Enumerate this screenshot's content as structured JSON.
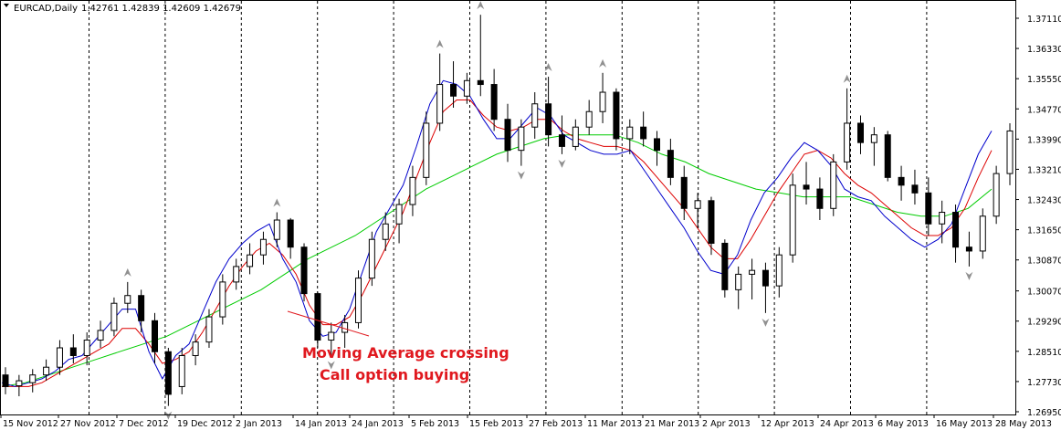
{
  "header": {
    "symbol": "EURCAD,Daily",
    "ohlc": "1.42761 1.42839 1.42609 1.42679"
  },
  "chart_data": {
    "type": "candlestick",
    "yticks": [
      "1.37110",
      "1.36330",
      "1.35550",
      "1.34770",
      "1.33990",
      "1.33210",
      "1.32430",
      "1.31650",
      "1.30870",
      "1.30070",
      "1.29290",
      "1.28510",
      "1.27730",
      "1.26950"
    ],
    "ytick_values": [
      1.3711,
      1.3633,
      1.3555,
      1.3477,
      1.3399,
      1.3321,
      1.3243,
      1.3165,
      1.3087,
      1.3007,
      1.2929,
      1.2851,
      1.2773,
      1.2695
    ],
    "xticks": [
      "15 Nov 2012",
      "27 Nov 2012",
      "7 Dec 2012",
      "19 Dec 2012",
      "2 Jan 2013",
      "14 Jan 2013",
      "24 Jan 2013",
      "5 Feb 2013",
      "15 Feb 2013",
      "27 Feb 2013",
      "11 Mar 2013",
      "21 Mar 2013",
      "2 Apr 2013",
      "12 Apr 2013",
      "24 Apr 2013",
      "6 May 2013",
      "16 May 2013",
      "28 May 2013"
    ],
    "ylim": [
      1.2687,
      1.3733
    ],
    "colors": {
      "up": "#ffffff",
      "down": "#000000",
      "ma_fast": "#0000cc",
      "ma_mid": "#dd0000",
      "ma_slow": "#00cc00",
      "annotation": "#e0191f",
      "fractal": "#909090"
    },
    "grid": "vertical dashed",
    "ma_fast": [
      1.277,
      1.276,
      1.277,
      1.278,
      1.28,
      1.283,
      1.284,
      1.288,
      1.292,
      1.296,
      1.296,
      1.285,
      1.278,
      1.284,
      1.287,
      1.295,
      1.303,
      1.309,
      1.313,
      1.316,
      1.318,
      1.309,
      1.303,
      1.293,
      1.289,
      1.29,
      1.296,
      1.306,
      1.316,
      1.322,
      1.328,
      1.338,
      1.349,
      1.355,
      1.354,
      1.351,
      1.345,
      1.34,
      1.34,
      1.344,
      1.348,
      1.346,
      1.341,
      1.339,
      1.337,
      1.336,
      1.336,
      1.337,
      1.332,
      1.327,
      1.322,
      1.317,
      1.311,
      1.306,
      1.305,
      1.31,
      1.319,
      1.326,
      1.33,
      1.335,
      1.339,
      1.337,
      1.333,
      1.327,
      1.325,
      1.324,
      1.32,
      1.317,
      1.314,
      1.312,
      1.314,
      1.318,
      1.327,
      1.336,
      1.342
    ],
    "ma_mid": [
      1.276,
      1.276,
      1.276,
      1.277,
      1.279,
      1.281,
      1.283,
      1.285,
      1.287,
      1.291,
      1.291,
      1.287,
      1.282,
      1.283,
      1.285,
      1.29,
      1.296,
      1.302,
      1.307,
      1.311,
      1.313,
      1.31,
      1.305,
      1.297,
      1.292,
      1.292,
      1.294,
      1.3,
      1.307,
      1.314,
      1.321,
      1.33,
      1.339,
      1.347,
      1.35,
      1.35,
      1.346,
      1.343,
      1.342,
      1.343,
      1.345,
      1.345,
      1.342,
      1.34,
      1.339,
      1.338,
      1.338,
      1.337,
      1.334,
      1.33,
      1.326,
      1.322,
      1.317,
      1.312,
      1.309,
      1.309,
      1.314,
      1.32,
      1.326,
      1.331,
      1.336,
      1.337,
      1.335,
      1.331,
      1.328,
      1.326,
      1.323,
      1.32,
      1.317,
      1.315,
      1.315,
      1.317,
      1.322,
      1.33,
      1.337
    ],
    "ma_slow": [
      1.276,
      1.277,
      1.279,
      1.281,
      1.283,
      1.285,
      1.287,
      1.289,
      1.292,
      1.295,
      1.298,
      1.301,
      1.305,
      1.309,
      1.312,
      1.315,
      1.319,
      1.323,
      1.327,
      1.33,
      1.333,
      1.336,
      1.338,
      1.34,
      1.341,
      1.341,
      1.341,
      1.339,
      1.336,
      1.334,
      1.331,
      1.329,
      1.327,
      1.326,
      1.325,
      1.325,
      1.325,
      1.323,
      1.321,
      1.32,
      1.32,
      1.322,
      1.327
    ],
    "candles": [
      {
        "o": 1.279,
        "h": 1.281,
        "l": 1.274,
        "c": 1.276
      },
      {
        "o": 1.2762,
        "h": 1.279,
        "l": 1.2735,
        "c": 1.2775
      },
      {
        "o": 1.277,
        "h": 1.2805,
        "l": 1.2745,
        "c": 1.279
      },
      {
        "o": 1.279,
        "h": 1.283,
        "l": 1.2775,
        "c": 1.281
      },
      {
        "o": 1.281,
        "h": 1.288,
        "l": 1.279,
        "c": 1.286
      },
      {
        "o": 1.286,
        "h": 1.2895,
        "l": 1.282,
        "c": 1.284
      },
      {
        "o": 1.284,
        "h": 1.29,
        "l": 1.2815,
        "c": 1.288
      },
      {
        "o": 1.288,
        "h": 1.293,
        "l": 1.286,
        "c": 1.2905
      },
      {
        "o": 1.2905,
        "h": 1.299,
        "l": 1.289,
        "c": 1.2975
      },
      {
        "o": 1.2975,
        "h": 1.303,
        "l": 1.295,
        "c": 1.2995
      },
      {
        "o": 1.2995,
        "h": 1.301,
        "l": 1.29,
        "c": 1.293
      },
      {
        "o": 1.293,
        "h": 1.295,
        "l": 1.282,
        "c": 1.285
      },
      {
        "o": 1.285,
        "h": 1.286,
        "l": 1.271,
        "c": 1.274
      },
      {
        "o": 1.276,
        "h": 1.286,
        "l": 1.274,
        "c": 1.284
      },
      {
        "o": 1.284,
        "h": 1.2895,
        "l": 1.2815,
        "c": 1.2875
      },
      {
        "o": 1.2875,
        "h": 1.296,
        "l": 1.286,
        "c": 1.294
      },
      {
        "o": 1.294,
        "h": 1.305,
        "l": 1.292,
        "c": 1.303
      },
      {
        "o": 1.303,
        "h": 1.309,
        "l": 1.301,
        "c": 1.307
      },
      {
        "o": 1.307,
        "h": 1.313,
        "l": 1.305,
        "c": 1.31
      },
      {
        "o": 1.31,
        "h": 1.316,
        "l": 1.3075,
        "c": 1.314
      },
      {
        "o": 1.314,
        "h": 1.321,
        "l": 1.312,
        "c": 1.319
      },
      {
        "o": 1.319,
        "h": 1.3195,
        "l": 1.309,
        "c": 1.312
      },
      {
        "o": 1.312,
        "h": 1.313,
        "l": 1.298,
        "c": 1.3
      },
      {
        "o": 1.3,
        "h": 1.3005,
        "l": 1.286,
        "c": 1.288
      },
      {
        "o": 1.288,
        "h": 1.2925,
        "l": 1.284,
        "c": 1.29
      },
      {
        "o": 1.29,
        "h": 1.2945,
        "l": 1.286,
        "c": 1.2925
      },
      {
        "o": 1.2925,
        "h": 1.306,
        "l": 1.291,
        "c": 1.304
      },
      {
        "o": 1.304,
        "h": 1.316,
        "l": 1.302,
        "c": 1.314
      },
      {
        "o": 1.314,
        "h": 1.321,
        "l": 1.311,
        "c": 1.318
      },
      {
        "o": 1.318,
        "h": 1.3245,
        "l": 1.313,
        "c": 1.323
      },
      {
        "o": 1.323,
        "h": 1.333,
        "l": 1.32,
        "c": 1.33
      },
      {
        "o": 1.33,
        "h": 1.347,
        "l": 1.328,
        "c": 1.344
      },
      {
        "o": 1.344,
        "h": 1.362,
        "l": 1.342,
        "c": 1.354
      },
      {
        "o": 1.354,
        "h": 1.36,
        "l": 1.348,
        "c": 1.351
      },
      {
        "o": 1.351,
        "h": 1.357,
        "l": 1.349,
        "c": 1.355
      },
      {
        "o": 1.355,
        "h": 1.372,
        "l": 1.351,
        "c": 1.354
      },
      {
        "o": 1.354,
        "h": 1.358,
        "l": 1.342,
        "c": 1.345
      },
      {
        "o": 1.345,
        "h": 1.349,
        "l": 1.334,
        "c": 1.337
      },
      {
        "o": 1.337,
        "h": 1.345,
        "l": 1.333,
        "c": 1.343
      },
      {
        "o": 1.343,
        "h": 1.352,
        "l": 1.34,
        "c": 1.349
      },
      {
        "o": 1.349,
        "h": 1.356,
        "l": 1.338,
        "c": 1.341
      },
      {
        "o": 1.341,
        "h": 1.346,
        "l": 1.336,
        "c": 1.338
      },
      {
        "o": 1.338,
        "h": 1.345,
        "l": 1.337,
        "c": 1.343
      },
      {
        "o": 1.343,
        "h": 1.35,
        "l": 1.341,
        "c": 1.347
      },
      {
        "o": 1.347,
        "h": 1.357,
        "l": 1.344,
        "c": 1.352
      },
      {
        "o": 1.352,
        "h": 1.353,
        "l": 1.337,
        "c": 1.34
      },
      {
        "o": 1.34,
        "h": 1.345,
        "l": 1.336,
        "c": 1.343
      },
      {
        "o": 1.343,
        "h": 1.347,
        "l": 1.338,
        "c": 1.34
      },
      {
        "o": 1.34,
        "h": 1.342,
        "l": 1.333,
        "c": 1.337
      },
      {
        "o": 1.337,
        "h": 1.34,
        "l": 1.328,
        "c": 1.33
      },
      {
        "o": 1.33,
        "h": 1.333,
        "l": 1.319,
        "c": 1.322
      },
      {
        "o": 1.322,
        "h": 1.326,
        "l": 1.317,
        "c": 1.324
      },
      {
        "o": 1.324,
        "h": 1.325,
        "l": 1.31,
        "c": 1.313
      },
      {
        "o": 1.313,
        "h": 1.314,
        "l": 1.299,
        "c": 1.301
      },
      {
        "o": 1.301,
        "h": 1.307,
        "l": 1.296,
        "c": 1.305
      },
      {
        "o": 1.305,
        "h": 1.309,
        "l": 1.2985,
        "c": 1.306
      },
      {
        "o": 1.306,
        "h": 1.308,
        "l": 1.295,
        "c": 1.302
      },
      {
        "o": 1.302,
        "h": 1.312,
        "l": 1.299,
        "c": 1.31
      },
      {
        "o": 1.31,
        "h": 1.331,
        "l": 1.308,
        "c": 1.328
      },
      {
        "o": 1.328,
        "h": 1.334,
        "l": 1.323,
        "c": 1.327
      },
      {
        "o": 1.327,
        "h": 1.33,
        "l": 1.319,
        "c": 1.322
      },
      {
        "o": 1.322,
        "h": 1.336,
        "l": 1.32,
        "c": 1.334
      },
      {
        "o": 1.334,
        "h": 1.353,
        "l": 1.332,
        "c": 1.344
      },
      {
        "o": 1.344,
        "h": 1.346,
        "l": 1.336,
        "c": 1.339
      },
      {
        "o": 1.339,
        "h": 1.343,
        "l": 1.333,
        "c": 1.341
      },
      {
        "o": 1.341,
        "h": 1.342,
        "l": 1.329,
        "c": 1.33
      },
      {
        "o": 1.33,
        "h": 1.333,
        "l": 1.324,
        "c": 1.328
      },
      {
        "o": 1.328,
        "h": 1.332,
        "l": 1.323,
        "c": 1.326
      },
      {
        "o": 1.326,
        "h": 1.33,
        "l": 1.315,
        "c": 1.318
      },
      {
        "o": 1.318,
        "h": 1.324,
        "l": 1.313,
        "c": 1.321
      },
      {
        "o": 1.321,
        "h": 1.323,
        "l": 1.308,
        "c": 1.312
      },
      {
        "o": 1.312,
        "h": 1.316,
        "l": 1.307,
        "c": 1.311
      },
      {
        "o": 1.311,
        "h": 1.322,
        "l": 1.309,
        "c": 1.32
      },
      {
        "o": 1.32,
        "h": 1.333,
        "l": 1.318,
        "c": 1.331
      },
      {
        "o": 1.331,
        "h": 1.344,
        "l": 1.328,
        "c": 1.342
      }
    ],
    "annotation": [
      "Moving Average crossing",
      "Call option buying"
    ]
  }
}
